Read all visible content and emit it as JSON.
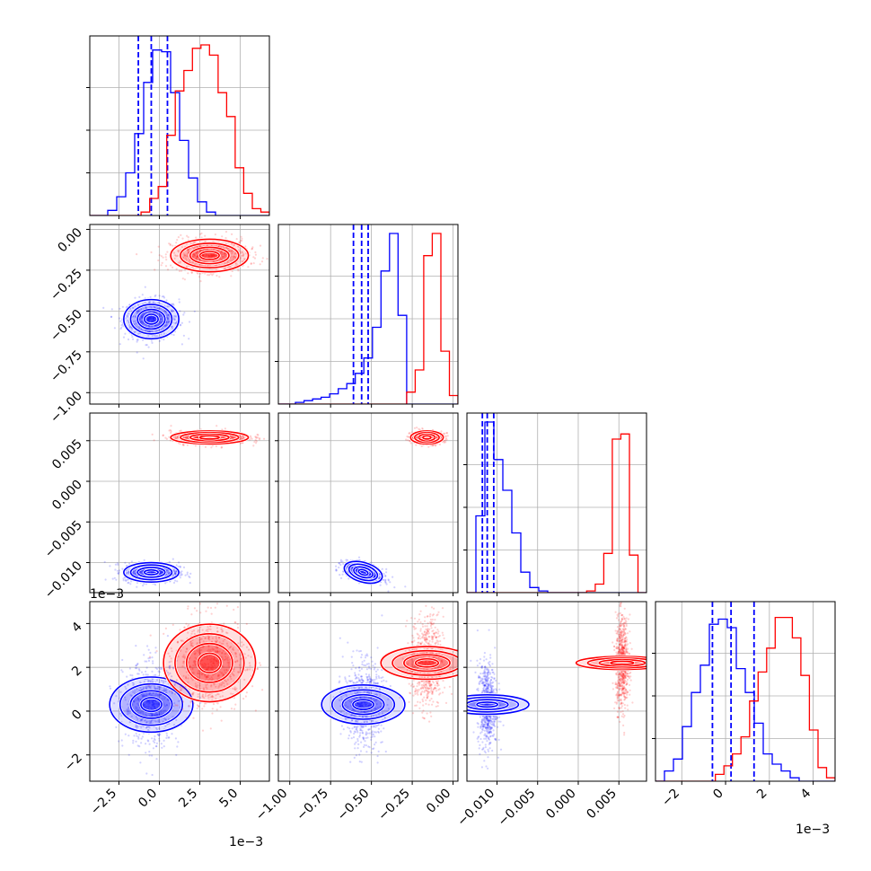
{
  "colors": {
    "series_a": "#0000ff",
    "series_b": "#ff0000",
    "grid": "#b0b0b0",
    "frame": "#000000"
  },
  "chart_data": {
    "type": "corner",
    "grid": true,
    "parameters": [
      {
        "range": [
          -4.3,
          6.8
        ],
        "ticks": [
          -2.5,
          0.0,
          2.5,
          5.0
        ],
        "tick_labels": [
          "−2.5",
          "0.0",
          "2.5",
          "5.0"
        ],
        "offset_text": "1e−3"
      },
      {
        "range": [
          -1.07,
          0.03
        ],
        "ticks": [
          -1.0,
          -0.75,
          -0.5,
          -0.25,
          0.0
        ],
        "tick_labels": [
          "−1.00",
          "−0.75",
          "−0.50",
          "−0.25",
          "0.00"
        ]
      },
      {
        "range": [
          -0.0137,
          0.0084
        ],
        "ticks": [
          -0.01,
          -0.005,
          0.0,
          0.005
        ],
        "tick_labels": [
          "−0.010",
          "−0.005",
          "0.000",
          "0.005"
        ]
      },
      {
        "range": [
          -3.2,
          5.0
        ],
        "ticks": [
          -2,
          0,
          2,
          4
        ],
        "tick_labels": [
          "−2",
          "0",
          "2",
          "4"
        ],
        "offset_text": "1e−3"
      }
    ],
    "series": [
      {
        "color": "#0000ff",
        "means": [
          -0.5,
          -0.55,
          -0.0112,
          0.3
        ],
        "sds": [
          0.85,
          0.06,
          0.0006,
          0.95
        ],
        "quantiles": [
          [
            -1.3,
            -0.5,
            0.5
          ],
          [
            -0.61,
            -0.56,
            -0.52
          ],
          [
            -0.0118,
            -0.0112,
            -0.0104
          ],
          [
            -0.6,
            0.25,
            1.3
          ]
        ],
        "hist": [
          [
            0,
            0,
            0.03,
            0.11,
            0.25,
            0.48,
            0.78,
            0.97,
            0.96,
            0.72,
            0.44,
            0.22,
            0.08,
            0.02,
            0,
            0,
            0,
            0,
            0,
            0
          ],
          [
            0,
            0,
            0.01,
            0.02,
            0.03,
            0.04,
            0.06,
            0.09,
            0.12,
            0.18,
            0.27,
            0.45,
            0.78,
            1.0,
            0.52,
            0,
            0,
            0,
            0,
            0,
            0
          ],
          [
            0,
            0.45,
            1.0,
            0.78,
            0.6,
            0.35,
            0.12,
            0.03,
            0.01,
            0,
            0,
            0,
            0,
            0,
            0,
            0,
            0,
            0,
            0,
            0
          ],
          [
            0,
            0.06,
            0.13,
            0.32,
            0.52,
            0.68,
            0.92,
            0.95,
            0.9,
            0.66,
            0.52,
            0.34,
            0.16,
            0.1,
            0.06,
            0.02,
            0,
            0,
            0,
            0
          ]
        ]
      },
      {
        "color": "#ff0000",
        "means": [
          3.1,
          -0.16,
          0.0054,
          2.2
        ],
        "sds": [
          1.2,
          0.05,
          0.0004,
          1.05
        ],
        "quantiles": [
          [],
          [],
          [],
          []
        ],
        "hist": [
          [
            0,
            0,
            0,
            0,
            0,
            0,
            0.02,
            0.1,
            0.17,
            0.47,
            0.73,
            0.85,
            0.98,
            1.0,
            0.94,
            0.72,
            0.58,
            0.28,
            0.13,
            0.04,
            0.02
          ],
          [
            0,
            0,
            0,
            0,
            0,
            0,
            0,
            0,
            0,
            0,
            0,
            0,
            0,
            0,
            0,
            0.07,
            0.2,
            0.87,
            1.0,
            0.31,
            0.05
          ],
          [
            0,
            0,
            0,
            0,
            0,
            0,
            0,
            0,
            0,
            0,
            0,
            0,
            0,
            0,
            0.01,
            0.05,
            0.23,
            0.9,
            0.93,
            0.22,
            0
          ],
          [
            0,
            0,
            0,
            0,
            0,
            0,
            0,
            0.04,
            0.09,
            0.16,
            0.26,
            0.47,
            0.64,
            0.78,
            0.96,
            0.96,
            0.84,
            0.62,
            0.3,
            0.08,
            0.02
          ]
        ]
      }
    ],
    "correlations": {
      "0,3": [
        0.0,
        0.0
      ],
      "1,2": [
        -0.5,
        0.0
      ],
      "1,3": [
        0.0,
        0.0
      ],
      "2,3": [
        0.0,
        0.0
      ]
    }
  }
}
